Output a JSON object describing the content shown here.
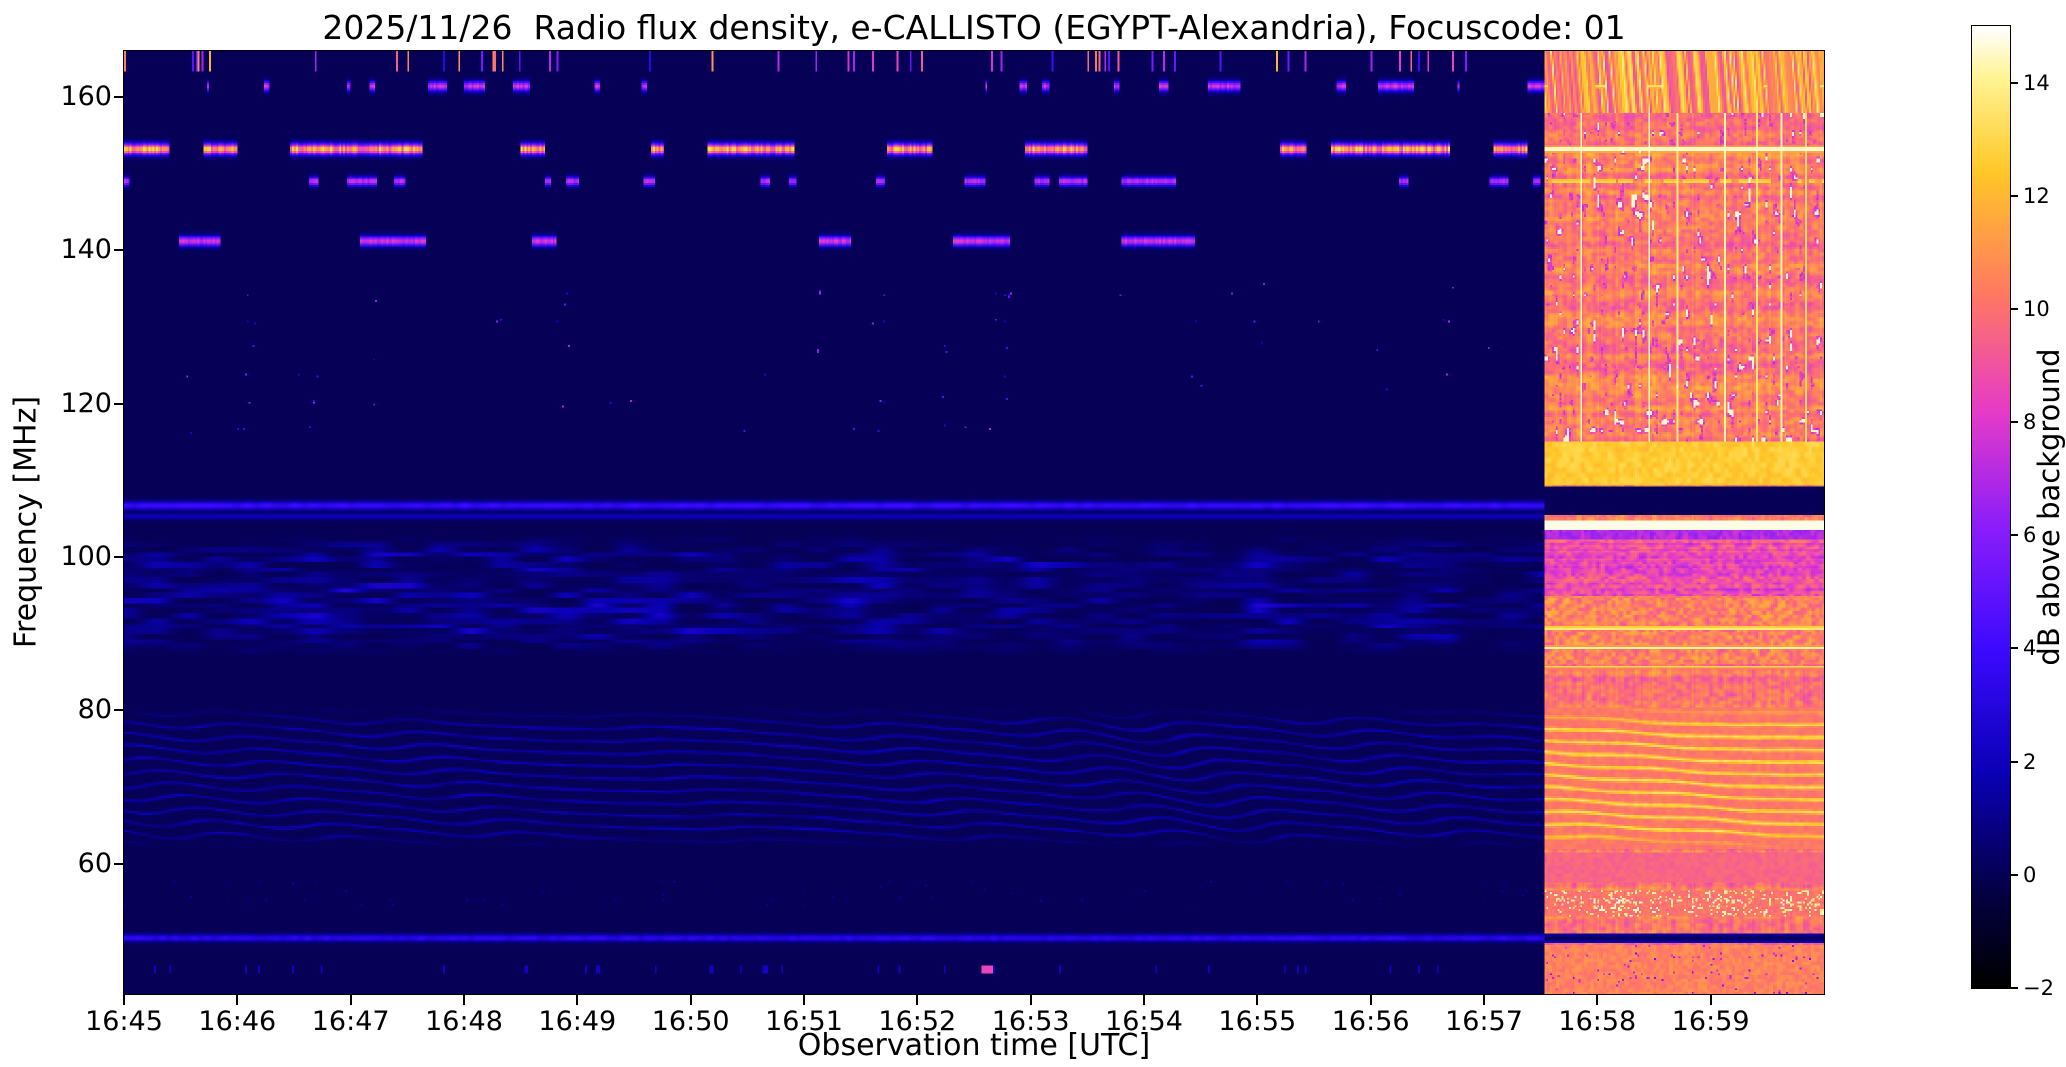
{
  "chart_data": {
    "type": "heatmap",
    "title": "2025/11/26  Radio flux density, e-CALLISTO (EGYPT-Alexandria), Focuscode: 01",
    "xlabel": "Observation time [UTC]",
    "ylabel": "Frequency [MHz]",
    "x_tick_labels": [
      "16:45",
      "16:46",
      "16:47",
      "16:48",
      "16:49",
      "16:50",
      "16:51",
      "16:52",
      "16:53",
      "16:54",
      "16:55",
      "16:56",
      "16:57",
      "16:58",
      "16:59"
    ],
    "x_range_minutes": 15,
    "y_ticks_mhz": [
      60,
      80,
      100,
      120,
      140,
      160
    ],
    "freq_range_mhz": [
      43,
      166
    ],
    "grid": false,
    "colorbar": {
      "label": "dB above background",
      "tick_values": [
        -2,
        0,
        2,
        4,
        6,
        8,
        10,
        12,
        14
      ],
      "value_range": [
        -2,
        15
      ],
      "colormap_stops": [
        [
          0.0,
          "#000000"
        ],
        [
          0.1,
          "#050046"
        ],
        [
          0.22,
          "#0a00b4"
        ],
        [
          0.35,
          "#3c0aff"
        ],
        [
          0.48,
          "#8c1efa"
        ],
        [
          0.6,
          "#e63cc8"
        ],
        [
          0.72,
          "#ff7864"
        ],
        [
          0.85,
          "#ffc828"
        ],
        [
          0.95,
          "#fff596"
        ],
        [
          1.0,
          "#ffffff"
        ]
      ]
    },
    "regions": {
      "quiet": {
        "time_frac_start": 0.0,
        "time_frac_end": 0.8353,
        "typical_db": -2
      },
      "saturated": {
        "time_frac_start": 0.8353,
        "time_frac_end": 1.0,
        "typical_db": 11
      }
    },
    "features": {
      "rfi_lines_mhz": [
        161.4,
        153.2,
        149.0,
        141.2
      ],
      "blue_line_mhz": 106.7,
      "white_band_bright_mhz": 104.0,
      "dark_band_bright_mhz": [
        105.5,
        109.1
      ],
      "speckle_band_mhz": [
        115.5,
        136.0
      ],
      "wisp_band_mhz": [
        87.0,
        103.0
      ],
      "ripple_band_mhz": [
        62.0,
        80.5
      ],
      "low_blue_line_mhz": 50.3,
      "low_speckle_band_mhz": [
        54.4,
        57.6
      ]
    }
  }
}
